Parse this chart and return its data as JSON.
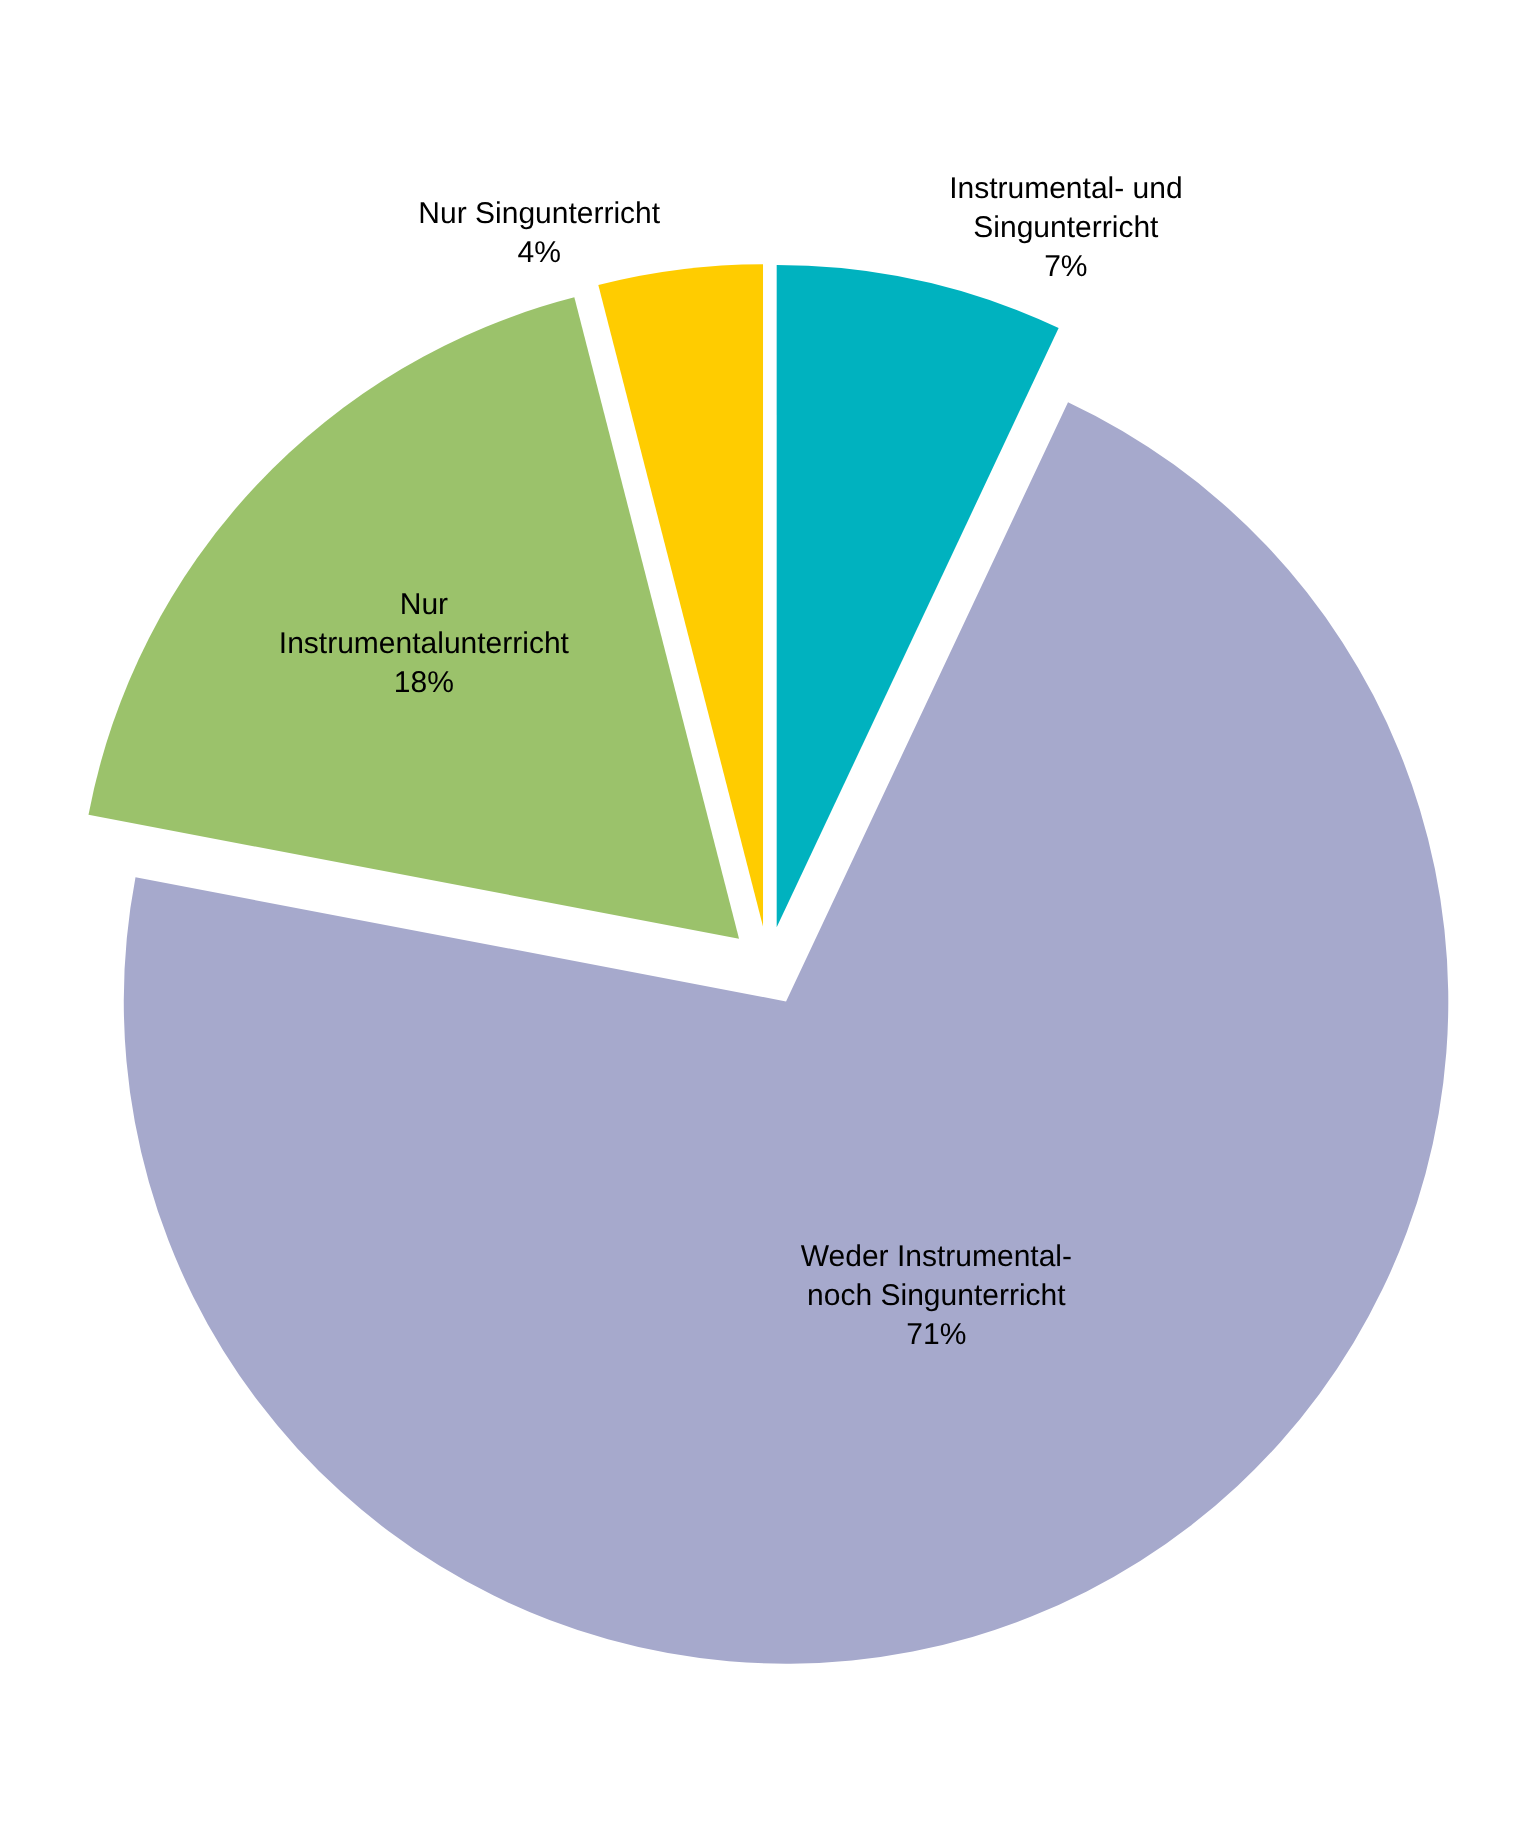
{
  "chart_data": {
    "type": "pie",
    "categories": [
      "Instrumental- und Singunterricht",
      "Weder Instrumental- noch Singunterricht",
      "Nur Instrumentalunterricht",
      "Nur Singunterricht"
    ],
    "values": [
      7,
      71,
      18,
      4
    ],
    "value_labels": [
      "7%",
      "71%",
      "18%",
      "4%"
    ],
    "colors": [
      "#00b2bf",
      "#a6a9cc",
      "#9bc26b",
      "#ffcc00"
    ],
    "legend": false
  }
}
